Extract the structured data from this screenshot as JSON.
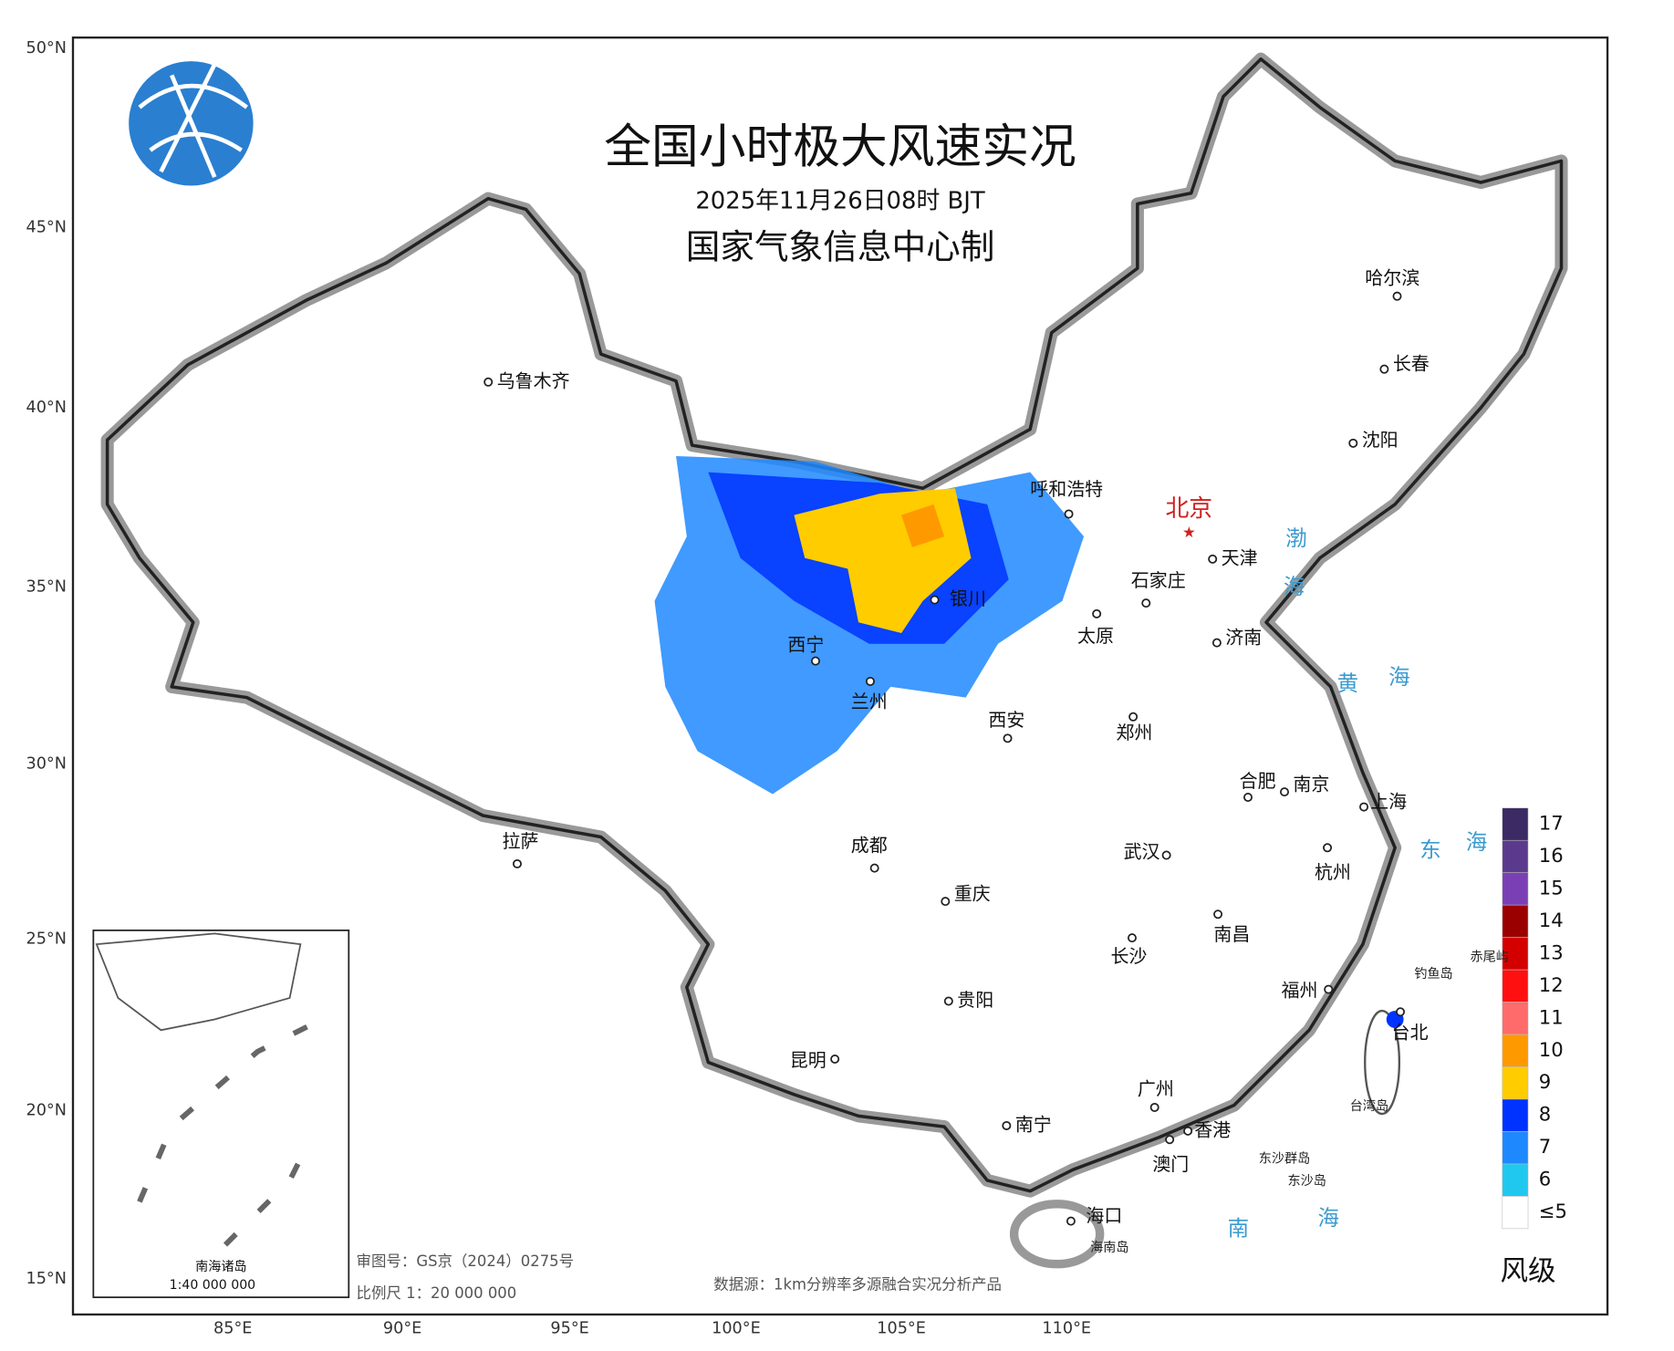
{
  "header": {
    "title": "全国小时极大风速实况",
    "time": "2025年11月26日08时 BJT",
    "producer": "国家气象信息中心制"
  },
  "latitudes": [
    "50°N",
    "45°N",
    "40°N",
    "35°N",
    "30°N",
    "25°N",
    "20°N",
    "15°N"
  ],
  "longitudes": [
    "85°E",
    "90°E",
    "95°E",
    "100°E",
    "105°E",
    "110°E"
  ],
  "capital": "北京",
  "cities": [
    "乌鲁木齐",
    "哈尔滨",
    "长春",
    "沈阳",
    "呼和浩特",
    "天津",
    "石家庄",
    "银川",
    "太原",
    "济南",
    "西宁",
    "兰州",
    "西安",
    "郑州",
    "合肥",
    "南京",
    "上海",
    "拉萨",
    "成都",
    "武汉",
    "杭州",
    "重庆",
    "长沙",
    "南昌",
    "福州",
    "贵阳",
    "昆明",
    "台北",
    "广州",
    "南宁",
    "香港",
    "澳门",
    "海口"
  ],
  "places": [
    "渤",
    "海",
    "黄",
    "海",
    "东",
    "海",
    "南",
    "海",
    "钓鱼岛",
    "赤尾屿",
    "台湾岛",
    "东沙群岛",
    "东沙岛",
    "海南岛"
  ],
  "legend": {
    "title": "风级",
    "levels": [
      "17",
      "16",
      "15",
      "14",
      "13",
      "12",
      "11",
      "10",
      "9",
      "8",
      "7",
      "6",
      "≤5"
    ],
    "colors": [
      "#3b2a63",
      "#5b3a8e",
      "#7b3fb5",
      "#9b0000",
      "#d40000",
      "#ff1010",
      "#ff6b6b",
      "#ff9900",
      "#ffcc00",
      "#0033ff",
      "#1e88ff",
      "#20c8f0",
      "#ffffff"
    ]
  },
  "inset": {
    "title": "南海诸岛",
    "scale": "1:40 000 000"
  },
  "footer": {
    "review": "审图号：GS京（2024）0275号",
    "scale": "比例尺 1：20 000 000",
    "source": "数据源：1km分辨率多源融合实况分析产品"
  }
}
